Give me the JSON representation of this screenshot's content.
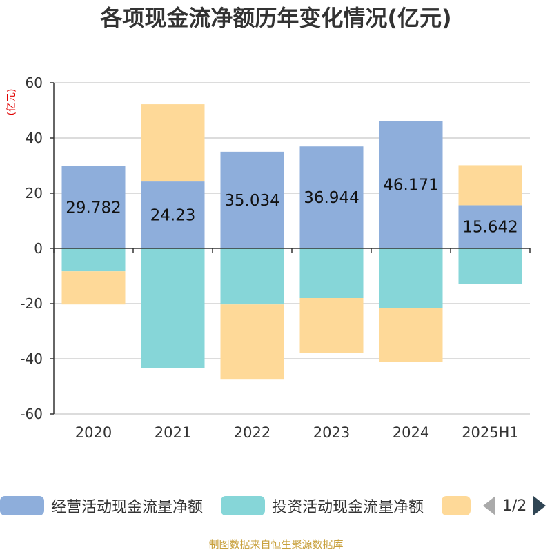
{
  "chart_data": {
    "type": "bar",
    "stacked": true,
    "title": "各项现金流净额历年变化情况(亿元)",
    "ylabel": "(亿元)",
    "categories": [
      "2020",
      "2021",
      "2022",
      "2023",
      "2024",
      "2025H1"
    ],
    "ylim": [
      -60,
      60
    ],
    "yticks": [
      60,
      40,
      20,
      0,
      -20,
      -40,
      -60
    ],
    "grid": true,
    "series": [
      {
        "name": "经营活动现金流量净额",
        "color": "#8eaedb",
        "values": [
          29.782,
          24.23,
          35.034,
          36.944,
          46.171,
          15.642
        ],
        "labels": [
          "29.782",
          "24.23",
          "35.034",
          "36.944",
          "46.171",
          "15.642"
        ]
      },
      {
        "name": "投资活动现金流量净额",
        "color": "#86d6d8",
        "values": [
          -8.3,
          -43.5,
          -20.3,
          -18.0,
          -21.5,
          -12.8
        ]
      },
      {
        "name": "",
        "color": "#fed998",
        "values": [
          -12.0,
          28.0,
          -27.0,
          -19.8,
          -19.5,
          14.5
        ]
      }
    ],
    "legend_position": "bottom",
    "legend_page": "1/2"
  },
  "source": "制图数据来自恒生聚源数据库"
}
